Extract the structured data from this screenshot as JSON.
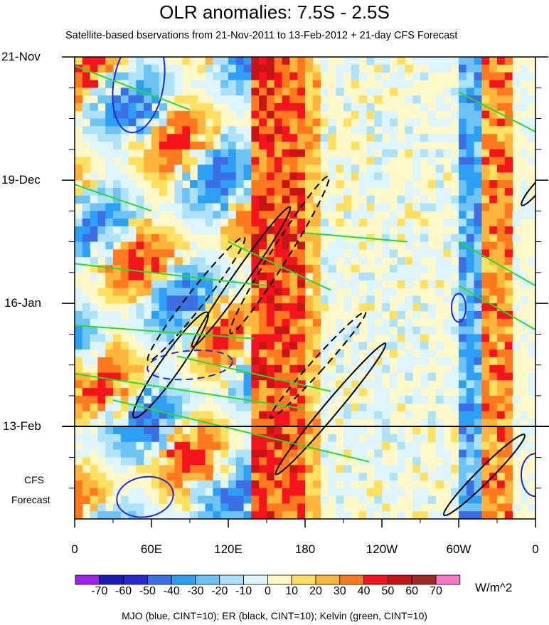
{
  "chart_data": {
    "type": "heatmap",
    "title": "OLR anomalies: 7.5S - 2.5S",
    "subtitle": "Satellite-based bservations from 21-Nov-2011 to 13-Feb-2012 + 21-day CFS Forecast",
    "x_ticks": [
      "0",
      "60E",
      "120E",
      "180",
      "120W",
      "60W",
      "0"
    ],
    "x_values": [
      0,
      60,
      120,
      180,
      240,
      300,
      360
    ],
    "y_ticks": [
      "21-Nov",
      "19-Dec",
      "16-Jan",
      "13-Feb"
    ],
    "y_values_days": [
      0,
      28,
      56,
      84
    ],
    "ylim_days": [
      0,
      105
    ],
    "forecast_label_1": "CFS",
    "forecast_label_2": "Forecast",
    "colorbar": {
      "levels": [
        "-70",
        "-60",
        "-50",
        "-40",
        "-30",
        "-20",
        "-10",
        "0",
        "10",
        "20",
        "30",
        "40",
        "50",
        "60",
        "70"
      ],
      "colors": [
        "#a020f0",
        "#1a1ab4",
        "#2828d2",
        "#3c6ee6",
        "#2da0f5",
        "#6ec3f5",
        "#aee2f8",
        "#def5fc",
        "#fff8c8",
        "#ffe060",
        "#ffb43c",
        "#ff7a1e",
        "#f5141e",
        "#c81414",
        "#a02828",
        "#ff78c8"
      ],
      "units": "W/m^2"
    },
    "contour_note": "MJO (blue, CINT=10); ER (black, CINT=10); Kelvin (green, CINT=10)",
    "series_colors": {
      "mjo": "#1e28dc",
      "er": "#000000",
      "kelvin": "#28dc28"
    }
  }
}
